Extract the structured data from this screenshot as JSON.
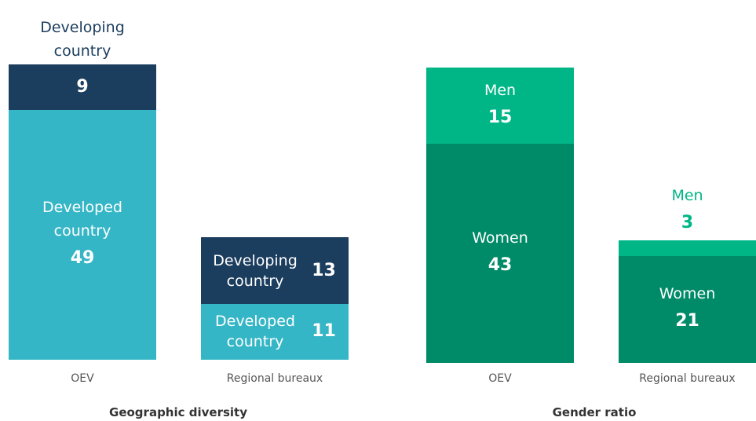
{
  "chart_data": [
    {
      "type": "stacked_bar",
      "title": "Geographic diversity",
      "categories": [
        "OEV",
        "Regional bureaux"
      ],
      "series": [
        {
          "name": "Developed country",
          "color": "#35b6c6",
          "values": [
            49,
            11
          ]
        },
        {
          "name": "Developing country",
          "color": "#1b3d5e",
          "values": [
            9,
            13
          ]
        }
      ]
    },
    {
      "type": "stacked_bar",
      "title": "Gender ratio",
      "categories": [
        "OEV",
        "Regional bureaux"
      ],
      "series": [
        {
          "name": "Women",
          "color": "#008b68",
          "values": [
            43,
            21
          ]
        },
        {
          "name": "Men",
          "color": "#00b686",
          "values": [
            15,
            3
          ]
        }
      ]
    }
  ]
}
